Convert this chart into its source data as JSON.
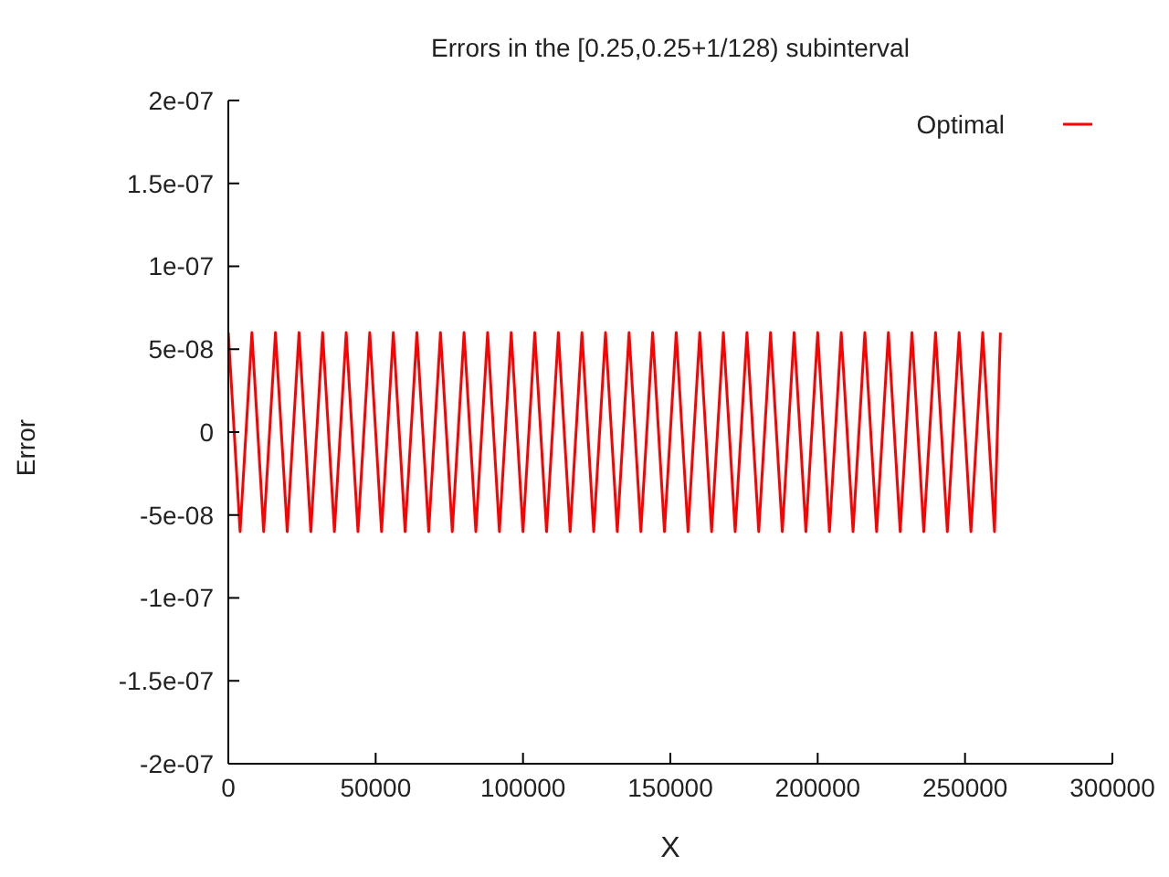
{
  "chart_data": {
    "type": "line",
    "title": "Errors in the [0.25,0.25+1/128) subinterval",
    "xlabel": "X",
    "ylabel": "Error",
    "xlim": [
      0,
      300000
    ],
    "xticks": [
      0,
      50000,
      100000,
      150000,
      200000,
      250000,
      300000
    ],
    "ylim": [
      -2e-07,
      2e-07
    ],
    "yticks": [
      {
        "value": -2e-07,
        "label": "-2e-07"
      },
      {
        "value": -1.5e-07,
        "label": "-1.5e-07"
      },
      {
        "value": -1e-07,
        "label": "-1e-07"
      },
      {
        "value": -5e-08,
        "label": "-5e-08"
      },
      {
        "value": 0,
        "label": "0"
      },
      {
        "value": 5e-08,
        "label": "5e-08"
      },
      {
        "value": 1e-07,
        "label": "1e-07"
      },
      {
        "value": 1.5e-07,
        "label": "1.5e-07"
      },
      {
        "value": 2e-07,
        "label": "2e-07"
      }
    ],
    "grid": false,
    "legend": "top right",
    "line_style": "solid",
    "series": [
      {
        "name": "Optimal",
        "color": "#ff0000",
        "x": [
          0,
          4000,
          8000,
          12000,
          16000,
          20000,
          24000,
          28000,
          32000,
          36000,
          40000,
          44000,
          48000,
          52000,
          56000,
          60000,
          64000,
          68000,
          72000,
          76000,
          80000,
          84000,
          88000,
          92000,
          96000,
          100000,
          104000,
          108000,
          112000,
          116000,
          120000,
          124000,
          128000,
          132000,
          136000,
          140000,
          144000,
          148000,
          152000,
          156000,
          160000,
          164000,
          168000,
          172000,
          176000,
          180000,
          184000,
          188000,
          192000,
          196000,
          200000,
          204000,
          208000,
          212000,
          216000,
          220000,
          224000,
          228000,
          232000,
          236000,
          240000,
          244000,
          248000,
          252000,
          256000,
          260000,
          262000
        ],
        "values": [
          6e-08,
          -6e-08,
          6e-08,
          -6e-08,
          6e-08,
          -6e-08,
          6e-08,
          -6e-08,
          6e-08,
          -6e-08,
          6e-08,
          -6e-08,
          6e-08,
          -6e-08,
          6e-08,
          -6e-08,
          6e-08,
          -6e-08,
          6e-08,
          -6e-08,
          6e-08,
          -6e-08,
          6e-08,
          -6e-08,
          6e-08,
          -6e-08,
          6e-08,
          -6e-08,
          6e-08,
          -6e-08,
          6e-08,
          -6e-08,
          6e-08,
          -6e-08,
          6e-08,
          -6e-08,
          6e-08,
          -6e-08,
          6e-08,
          -6e-08,
          6e-08,
          -6e-08,
          6e-08,
          -6e-08,
          6e-08,
          -6e-08,
          6e-08,
          -6e-08,
          6e-08,
          -6e-08,
          6e-08,
          -6e-08,
          6e-08,
          -6e-08,
          6e-08,
          -6e-08,
          6e-08,
          -6e-08,
          6e-08,
          -6e-08,
          6e-08,
          -6e-08,
          6e-08,
          -6e-08,
          6e-08,
          -6e-08,
          6e-08
        ]
      }
    ]
  }
}
